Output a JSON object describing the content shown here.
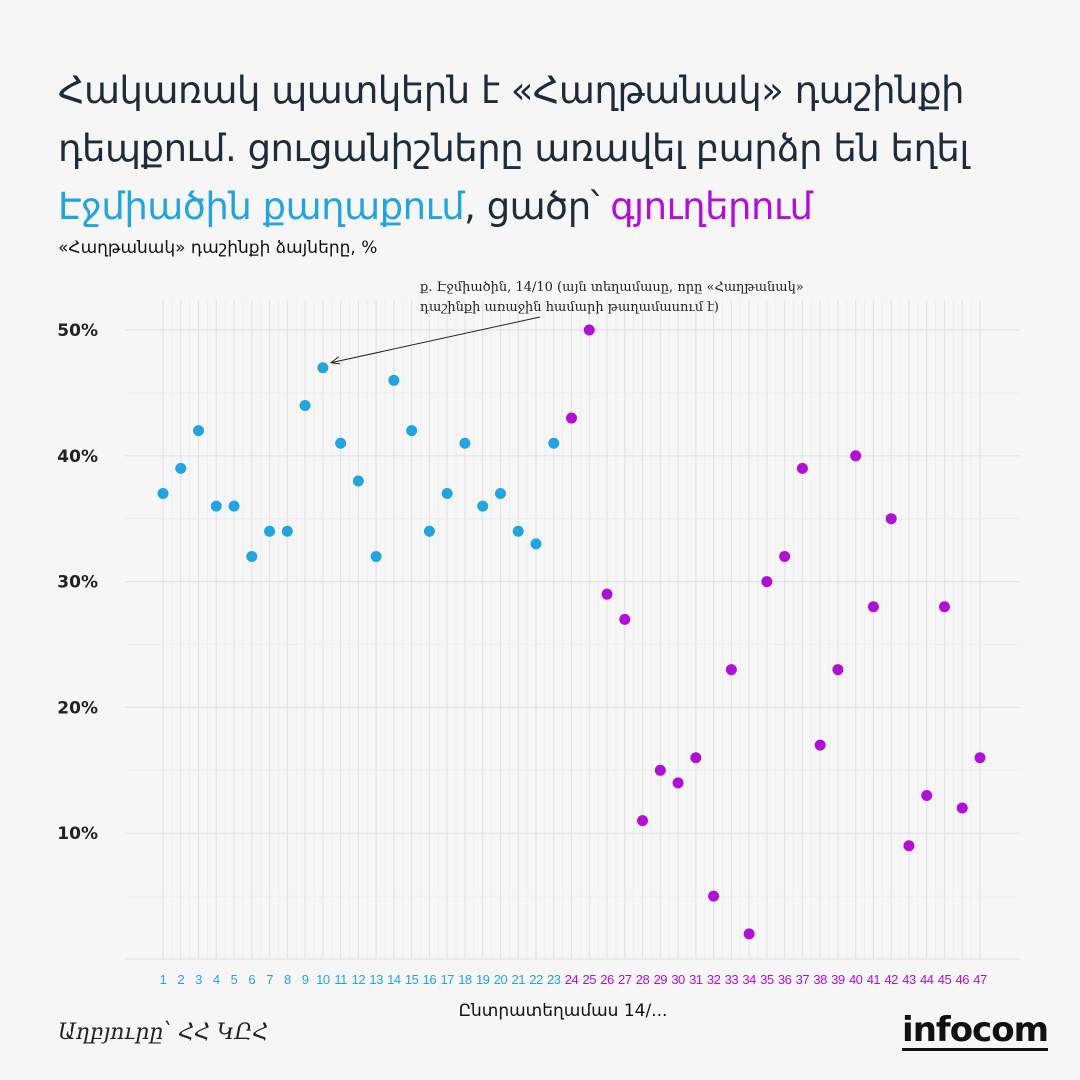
{
  "title": {
    "line1": "Հակառակ պատկերն է «Հաղթանակ» դաշինքի",
    "line2": "դեպքում. ցուցանիշները առավել բարձր են եղել",
    "highlight_city": "Էջմիածին քաղաքում",
    "middle": ", ցածր՝ ",
    "highlight_village": "գյուղերում"
  },
  "subtitle": "«Հաղթանակ» դաշինքի ձայները, %",
  "source": "Աղբյուրը՝ ՀՀ ԿԸՀ",
  "logo": "infocom",
  "colors": {
    "city": "#22a4e0",
    "village": "#b10ed6",
    "text": "#1d2b3a"
  },
  "chart_data": {
    "type": "scatter",
    "xlabel": "Ընտրատեղամաս 14/...",
    "ylabel": "«Հաղթանակ» դաշինքի ձայները, %",
    "ylim": [
      0,
      50
    ],
    "yticks": [
      10,
      20,
      30,
      40,
      50
    ],
    "ytick_labels": [
      "10%",
      "20%",
      "30%",
      "40%",
      "50%"
    ],
    "grid": true,
    "x": [
      1,
      2,
      3,
      4,
      5,
      6,
      7,
      8,
      9,
      10,
      11,
      12,
      13,
      14,
      15,
      16,
      17,
      18,
      19,
      20,
      21,
      22,
      23,
      24,
      25,
      26,
      27,
      28,
      29,
      30,
      31,
      32,
      33,
      34,
      35,
      36,
      37,
      38,
      39,
      40,
      41,
      42,
      43,
      44,
      45,
      46,
      47
    ],
    "series": [
      {
        "name": "Էջմիածին քաղաք",
        "color": "#22a4e0",
        "x_from": 1,
        "x_to": 23
      },
      {
        "name": "գյուղեր",
        "color": "#b10ed6",
        "x_from": 24,
        "x_to": 47
      }
    ],
    "values": [
      37,
      39,
      42,
      36,
      36,
      32,
      34,
      34,
      44,
      47,
      41,
      38,
      32,
      46,
      42,
      34,
      37,
      41,
      36,
      37,
      34,
      33,
      41,
      43,
      50,
      29,
      27,
      11,
      15,
      14,
      16,
      5,
      23,
      2,
      30,
      32,
      39,
      17,
      23,
      40,
      28,
      35,
      9,
      13,
      28,
      12,
      16
    ],
    "annotation": {
      "target_x": 10,
      "line1": "ք. Էջմիածին, 14/10 (այն տեղամասը, որը «Հաղթանակ»",
      "line2": "դաշինքի առաջին համարի թաղամասում է)"
    }
  }
}
